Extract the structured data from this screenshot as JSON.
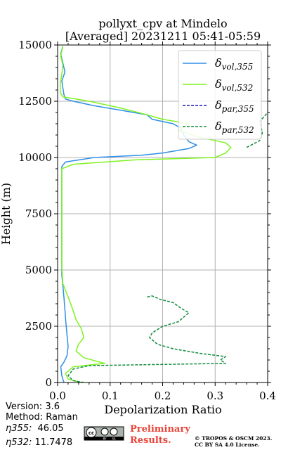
{
  "chart_data": {
    "type": "line",
    "title": "pollyxt_cpv at Mindelo",
    "subtitle": "[Averaged] 20231211 05:41-05:59",
    "xlabel": "Depolarization Ratio",
    "ylabel": "Height (m)",
    "xlim": [
      0,
      0.4
    ],
    "ylim": [
      0,
      15000
    ],
    "x_ticks": [
      "0.0",
      "0.1",
      "0.2",
      "0.3",
      "0.4"
    ],
    "y_ticks": [
      "0",
      "2500",
      "5000",
      "7500",
      "10000",
      "12500",
      "15000"
    ],
    "grid": true,
    "legend_position": "top-right",
    "series": [
      {
        "name": "δvol,355",
        "legend_label_main": "δ",
        "legend_label_sub": "vol,355",
        "color": "#2f8fe6",
        "style": "solid",
        "points": [
          [
            0.012,
            0
          ],
          [
            0.008,
            300
          ],
          [
            0.006,
            700
          ],
          [
            0.012,
            900
          ],
          [
            0.018,
            1200
          ],
          [
            0.02,
            1600
          ],
          [
            0.018,
            2100
          ],
          [
            0.016,
            2600
          ],
          [
            0.014,
            3200
          ],
          [
            0.012,
            3800
          ],
          [
            0.01,
            4300
          ],
          [
            0.008,
            4800
          ],
          [
            0.008,
            6000
          ],
          [
            0.008,
            7200
          ],
          [
            0.008,
            8400
          ],
          [
            0.008,
            9300
          ],
          [
            0.008,
            9600
          ],
          [
            0.015,
            9800
          ],
          [
            0.07,
            10000
          ],
          [
            0.16,
            10100
          ],
          [
            0.2,
            10200
          ],
          [
            0.25,
            10400
          ],
          [
            0.265,
            10550
          ],
          [
            0.25,
            10700
          ],
          [
            0.24,
            11000
          ],
          [
            0.235,
            11300
          ],
          [
            0.22,
            11500
          ],
          [
            0.18,
            11700
          ],
          [
            0.17,
            11900
          ],
          [
            0.12,
            12100
          ],
          [
            0.07,
            12300
          ],
          [
            0.03,
            12500
          ],
          [
            0.015,
            12600
          ],
          [
            0.012,
            12800
          ],
          [
            0.01,
            13100
          ],
          [
            0.008,
            13400
          ],
          [
            0.014,
            13800
          ],
          [
            0.01,
            14200
          ],
          [
            0.006,
            14600
          ],
          [
            0.01,
            14950
          ]
        ]
      },
      {
        "name": "δvol,532",
        "legend_label_main": "δ",
        "legend_label_sub": "vol,532",
        "color": "#7ef31f",
        "style": "solid",
        "points": [
          [
            0.045,
            0
          ],
          [
            0.02,
            150
          ],
          [
            0.015,
            400
          ],
          [
            0.03,
            700
          ],
          [
            0.09,
            850
          ],
          [
            0.05,
            1100
          ],
          [
            0.035,
            1400
          ],
          [
            0.04,
            1700
          ],
          [
            0.05,
            2000
          ],
          [
            0.045,
            2400
          ],
          [
            0.035,
            2800
          ],
          [
            0.028,
            3300
          ],
          [
            0.02,
            3800
          ],
          [
            0.01,
            4400
          ],
          [
            0.008,
            5200
          ],
          [
            0.008,
            6500
          ],
          [
            0.008,
            7800
          ],
          [
            0.008,
            9000
          ],
          [
            0.008,
            9500
          ],
          [
            0.03,
            9700
          ],
          [
            0.15,
            9900
          ],
          [
            0.3,
            10000
          ],
          [
            0.32,
            10200
          ],
          [
            0.33,
            10450
          ],
          [
            0.32,
            10650
          ],
          [
            0.27,
            10900
          ],
          [
            0.23,
            11200
          ],
          [
            0.25,
            11500
          ],
          [
            0.2,
            11700
          ],
          [
            0.17,
            11900
          ],
          [
            0.12,
            12200
          ],
          [
            0.06,
            12500
          ],
          [
            0.01,
            12700
          ],
          [
            0.005,
            12900
          ],
          [
            0.005,
            13300
          ],
          [
            0.008,
            13700
          ],
          [
            0.01,
            14100
          ],
          [
            0.006,
            14500
          ],
          [
            0.01,
            14950
          ]
        ]
      },
      {
        "name": "δpar,355",
        "legend_label_main": "δ",
        "legend_label_sub": "par,355",
        "color": "#1c1cab",
        "style": "dashed",
        "points": []
      },
      {
        "name": "δpar,532",
        "legend_label_main": "δ",
        "legend_label_sub": "par,532",
        "color": "#148a3c",
        "style": "dashed",
        "points": [
          [
            0.05,
            0
          ],
          [
            0.03,
            80
          ],
          [
            0.02,
            300
          ],
          [
            0.03,
            600
          ],
          [
            0.06,
            750
          ],
          [
            0.32,
            850
          ],
          [
            0.31,
            1000
          ],
          [
            0.32,
            1150
          ],
          [
            0.27,
            1300
          ],
          [
            0.22,
            1500
          ],
          [
            0.19,
            1700
          ],
          [
            0.175,
            2000
          ],
          [
            0.18,
            2200
          ],
          [
            0.2,
            2500
          ],
          [
            0.23,
            2700
          ],
          [
            0.24,
            2900
          ],
          [
            0.25,
            3100
          ],
          [
            0.235,
            3300
          ],
          [
            0.22,
            3550
          ],
          [
            0.195,
            3700
          ],
          [
            0.18,
            3850
          ],
          [
            0.17,
            3800
          ]
        ]
      },
      {
        "name": "δpar,532 upper",
        "color": "#148a3c",
        "style": "dashed",
        "points": [
          [
            0.36,
            10450
          ],
          [
            0.385,
            10750
          ],
          [
            0.39,
            11100
          ],
          [
            0.385,
            11600
          ],
          [
            0.4,
            12000
          ]
        ]
      }
    ]
  },
  "footer": {
    "version": "Version: 3.6",
    "method": "Method: Raman",
    "eta355_label": "η355:",
    "eta355_value": "46.05",
    "eta532_label": "η532:",
    "eta532_value": "11.7478",
    "preliminary_line1": "Preliminary",
    "preliminary_line2": "Results.",
    "copyright_line1": "© TROPOS & OSCM 2023.",
    "copyright_line2": "CC BY SA 4.0 License.",
    "cc_badge_top": "cc",
    "cc_badge_by": "BY",
    "cc_badge_sa": "SA",
    "preliminary_color": "#e8453a"
  }
}
